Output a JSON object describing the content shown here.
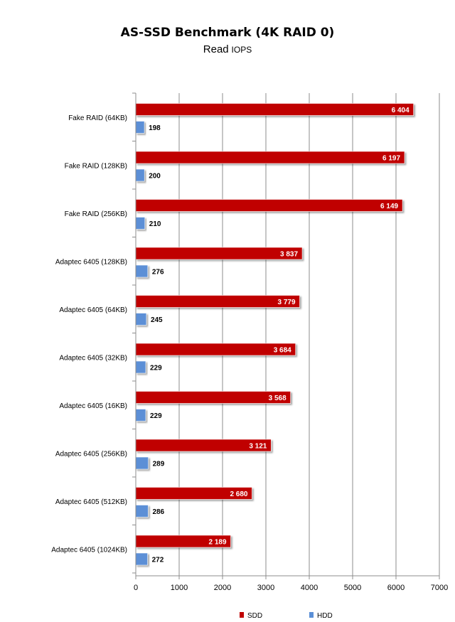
{
  "chart_data": {
    "type": "bar",
    "orientation": "horizontal",
    "title": "AS-SSD Benchmark (4K RAID 0)",
    "subtitle_main": "Read",
    "subtitle_unit": "IOPS",
    "categories": [
      "Fake RAID (64KB)",
      "Fake RAID (128KB)",
      "Fake RAID (256KB)",
      "Adaptec 6405 (128KB)",
      "Adaptec 6405 (64KB)",
      "Adaptec 6405 (32KB)",
      "Adaptec 6405 (16KB)",
      "Adaptec 6405 (256KB)",
      "Adaptec 6405 (512KB)",
      "Adaptec 6405 (1024KB)"
    ],
    "series": [
      {
        "name": "SDD",
        "color": "#c00000",
        "values": [
          6404,
          6197,
          6149,
          3837,
          3779,
          3684,
          3568,
          3121,
          2680,
          2189
        ],
        "labels": [
          "6 404",
          "6 197",
          "6 149",
          "3 837",
          "3 779",
          "3 684",
          "3 568",
          "3 121",
          "2 680",
          "2 189"
        ]
      },
      {
        "name": "HDD",
        "color": "#5b8fd6",
        "values": [
          198,
          200,
          210,
          276,
          245,
          229,
          229,
          289,
          286,
          272
        ],
        "labels": [
          "198",
          "200",
          "210",
          "276",
          "245",
          "229",
          "229",
          "289",
          "286",
          "272"
        ]
      }
    ],
    "xlim": [
      0,
      7000
    ],
    "xticks": [
      "0",
      "1000",
      "2000",
      "3000",
      "4000",
      "5000",
      "6000",
      "7000"
    ],
    "grid": true,
    "legend_position": "bottom"
  }
}
